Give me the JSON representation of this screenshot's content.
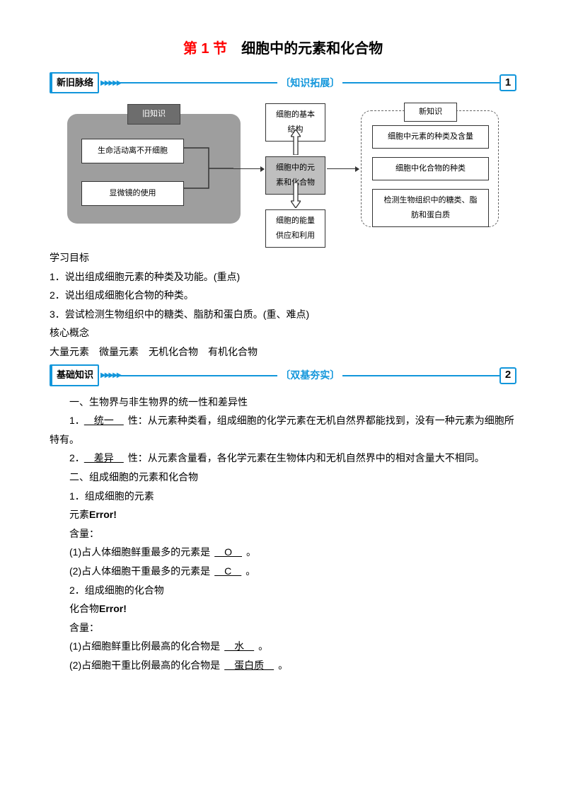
{
  "title": {
    "red": "第 1 节",
    "black": "　细胞中的元素和化合物"
  },
  "divider1": {
    "tag": "新旧脉络",
    "label": "〔知识拓展〕",
    "num": "1"
  },
  "divider2": {
    "tag": "基础知识",
    "label": "〔双基夯实〕",
    "num": "2"
  },
  "diagram": {
    "oldTitle": "旧知识",
    "old1": "生命活动离不开细胞",
    "old2": "显微镜的使用",
    "top": "细胞的基本\n结构",
    "center": "细胞中的元\n素和化合物",
    "bottom": "细胞的能量\n供应和利用",
    "newTitle": "新知识",
    "new1": "细胞中元素的种类及含量",
    "new2": "细胞中化合物的种类",
    "new3": "检测生物组织中的糖类、脂\n肪和蛋白质"
  },
  "sectionA": {
    "h": "学习目标",
    "l1": "1．说出组成细胞元素的种类及功能。(重点)",
    "l2": "2．说出组成细胞化合物的种类。",
    "l3": "3．尝试检测生物组织中的糖类、脂肪和蛋白质。(重、难点)"
  },
  "sectionB": {
    "h": "核心概念",
    "l1": "大量元素　微量元素　无机化合物　有机化合物"
  },
  "sectionC": {
    "h1": "一、生物界与非生物界的统一性和差异性",
    "p1a": "1．",
    "p1u": "　统一　",
    "p1b": "性：从元素种类看，组成细胞的化学元素在无机自然界都能找到，没有一种元素为细胞所特有。",
    "p2a": "2．",
    "p2u": "　差异　",
    "p2b": "性：从元素含量看，各化学元素在生物体内和无机自然界中的相对含量大不相同。",
    "h2": "二、组成细胞的元素和化合物",
    "p3": "1．组成细胞的元素",
    "p4a": "元素",
    "p4b": "Error!",
    "p5": "含量：",
    "p6a": "(1)占人体细胞鲜重最多的元素是",
    "p6u": "　O　",
    "p6b": "。",
    "p7a": "(2)占人体细胞干重最多的元素是",
    "p7u": "　C　",
    "p7b": "。",
    "p8": "2．组成细胞的化合物",
    "p9a": "化合物",
    "p9b": "Error!",
    "p10": "含量：",
    "p11a": "(1)占细胞鲜重比例最高的化合物是",
    "p11u": "　水　",
    "p11b": "。",
    "p12a": "(2)占细胞干重比例最高的化合物是",
    "p12u": "　蛋白质　",
    "p12b": "。"
  }
}
